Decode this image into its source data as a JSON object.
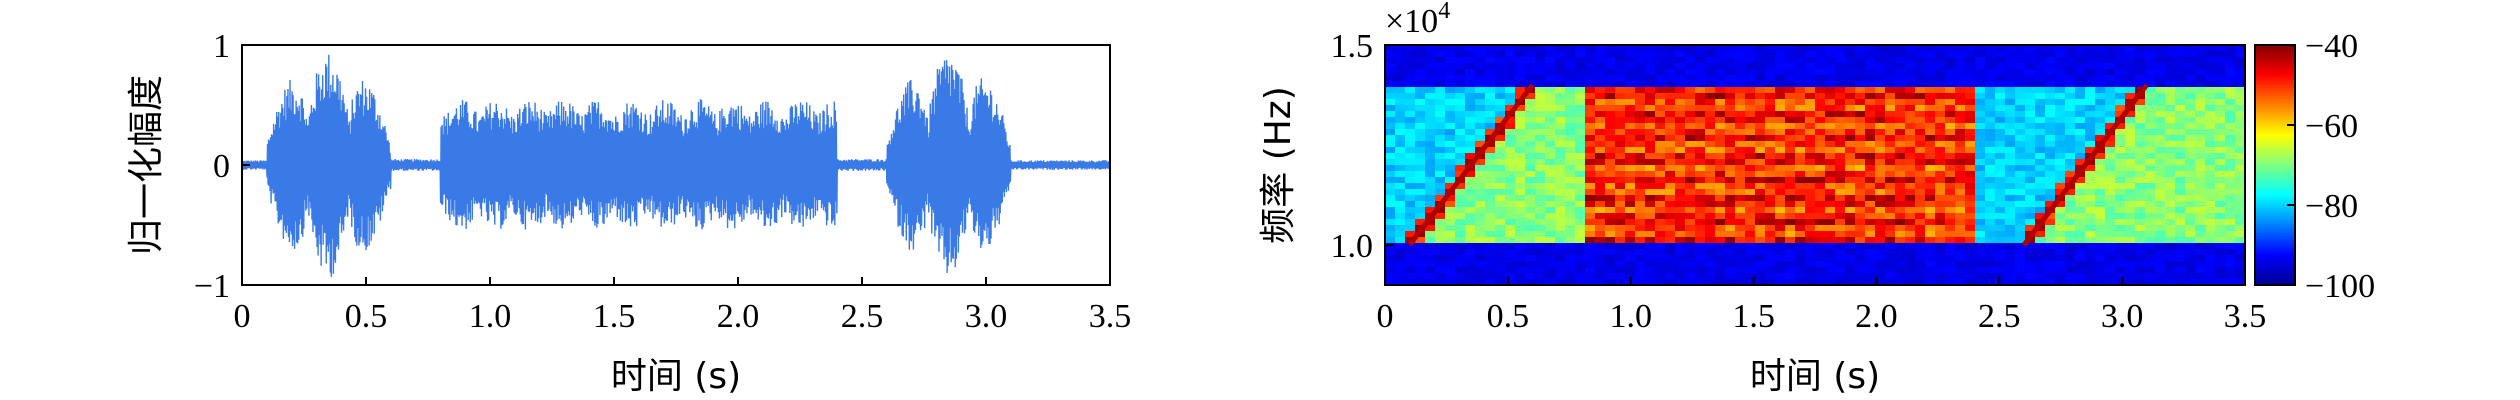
{
  "chart_data": [
    {
      "type": "line",
      "title": "",
      "xlabel": "时间 (s)",
      "ylabel": "归一化幅度",
      "xlim": [
        0,
        3.5
      ],
      "ylim": [
        -1,
        1
      ],
      "x_ticks": [
        "0",
        "0.5",
        "1.0",
        "1.5",
        "2.0",
        "2.5",
        "3.0",
        "3.5"
      ],
      "y_ticks": [
        "1",
        "0",
        "−1"
      ],
      "color": "#3a7ae6",
      "series": [
        {
          "segments": [
            {
              "x_start": 0.0,
              "x_end": 0.1,
              "amplitude": 0.04
            },
            {
              "x_start": 0.1,
              "x_end": 0.6,
              "amplitude": 0.95,
              "shape": "bursts"
            },
            {
              "x_start": 0.6,
              "x_end": 0.8,
              "amplitude": 0.05
            },
            {
              "x_start": 0.8,
              "x_end": 2.4,
              "amplitude": 0.55,
              "shape": "flat"
            },
            {
              "x_start": 2.4,
              "x_end": 2.6,
              "amplitude": 0.05
            },
            {
              "x_start": 2.6,
              "x_end": 3.1,
              "amplitude": 0.95,
              "shape": "bursts"
            },
            {
              "x_start": 3.1,
              "x_end": 3.5,
              "amplitude": 0.04
            }
          ]
        }
      ]
    },
    {
      "type": "heatmap",
      "title": "",
      "xlabel": "时间 (s)",
      "ylabel": "频率 (Hz)",
      "y_scale_note": "×10",
      "y_scale_exp": "4",
      "xlim": [
        0,
        3.5
      ],
      "ylim": [
        0.9,
        1.5
      ],
      "x_ticks": [
        "0",
        "0.5",
        "1.0",
        "1.5",
        "2.0",
        "2.5",
        "3.0",
        "3.5"
      ],
      "y_ticks": [
        "1.5",
        "1.0"
      ],
      "colorbar": {
        "range": [
          -100,
          -40
        ],
        "ticks": [
          "−40",
          "−60",
          "−80",
          "−100"
        ]
      },
      "regions": [
        {
          "name": "chirp",
          "t_start": 0.1,
          "t_end": 0.6,
          "f_start": 1.0,
          "f_end": 1.4
        },
        {
          "name": "band",
          "t_start": 0.8,
          "t_end": 2.4,
          "f_low": 1.0,
          "f_high": 1.4
        },
        {
          "name": "chirp",
          "t_start": 2.6,
          "t_end": 3.1,
          "f_start": 1.0,
          "f_end": 1.4
        }
      ]
    }
  ]
}
